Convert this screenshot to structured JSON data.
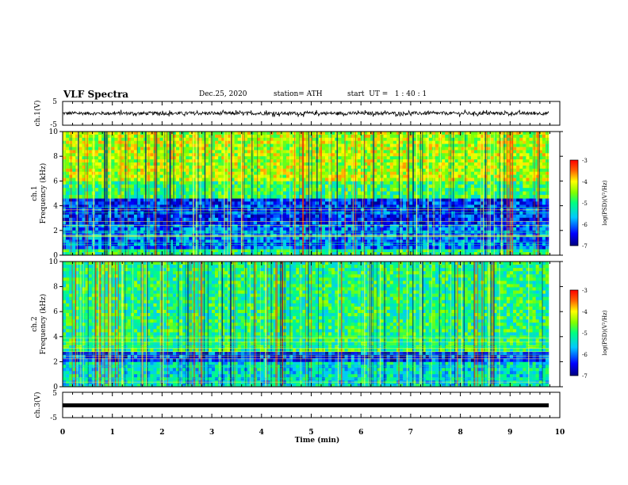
{
  "header": {
    "title": "VLF Spectra",
    "date": "Dec.25, 2020",
    "station": "station= ATH",
    "start_ut": "start  UT =   1 : 40 : 1"
  },
  "chart_data": [
    {
      "type": "line",
      "panel": "ch1-waveform",
      "ylabel": "ch.1(V)",
      "yticks": [
        "5",
        "-5"
      ],
      "ylim": [
        -5,
        5
      ],
      "xlim": [
        0,
        10
      ],
      "xlabel": "",
      "description": "noisy waveform, amplitude about ±1.5 V, spanning 0–9.8 min"
    },
    {
      "type": "heatmap",
      "panel": "ch1-spectrogram",
      "ylabel": "ch.1 Frequency (kHz)",
      "yticks": [
        "0",
        "2",
        "4",
        "6",
        "8",
        "10"
      ],
      "ylim": [
        0,
        10
      ],
      "xlim": [
        0,
        9.8
      ],
      "colorbar": {
        "label": "log(PSD)(V²/Hz)",
        "ticks": [
          "-3",
          "-4",
          "-5",
          "-6",
          "-7"
        ],
        "range": [
          -7,
          -3
        ]
      },
      "bands": [
        {
          "from_khz": 0,
          "to_khz": 0.5,
          "level": -5.0
        },
        {
          "from_khz": 0.5,
          "to_khz": 2.5,
          "level": -6.0
        },
        {
          "from_khz": 2.5,
          "to_khz": 4.6,
          "level": -6.3
        },
        {
          "from_khz": 4.6,
          "to_khz": 6.0,
          "level": -4.9
        },
        {
          "from_khz": 6.0,
          "to_khz": 10,
          "level": -4.3
        }
      ]
    },
    {
      "type": "heatmap",
      "panel": "ch2-spectrogram",
      "ylabel": "ch.2 Frequency (kHz)",
      "yticks": [
        "0",
        "2",
        "4",
        "6",
        "8",
        "10"
      ],
      "ylim": [
        0,
        10
      ],
      "xlim": [
        0,
        9.8
      ],
      "colorbar": {
        "label": "log(PSD)(V²/Hz)",
        "ticks": [
          "-3",
          "-4",
          "-5",
          "-6",
          "-7"
        ],
        "range": [
          -7,
          -3
        ]
      },
      "bands": [
        {
          "from_khz": 0,
          "to_khz": 2.0,
          "level": -5.4
        },
        {
          "from_khz": 2.0,
          "to_khz": 2.8,
          "level": -6.3
        },
        {
          "from_khz": 2.8,
          "to_khz": 10,
          "level": -5.0
        }
      ]
    },
    {
      "type": "line",
      "panel": "ch3-waveform",
      "ylabel": "ch.3(V)",
      "yticks": [
        "5",
        "-5"
      ],
      "ylim": [
        -5,
        5
      ],
      "xlim": [
        0,
        10
      ],
      "xlabel": "Time  (min)",
      "xticks": [
        "0",
        "1",
        "2",
        "3",
        "4",
        "5",
        "6",
        "7",
        "8",
        "9",
        "10"
      ],
      "description": "flat thick trace near -0.3 V across 0–9.8 min"
    }
  ]
}
